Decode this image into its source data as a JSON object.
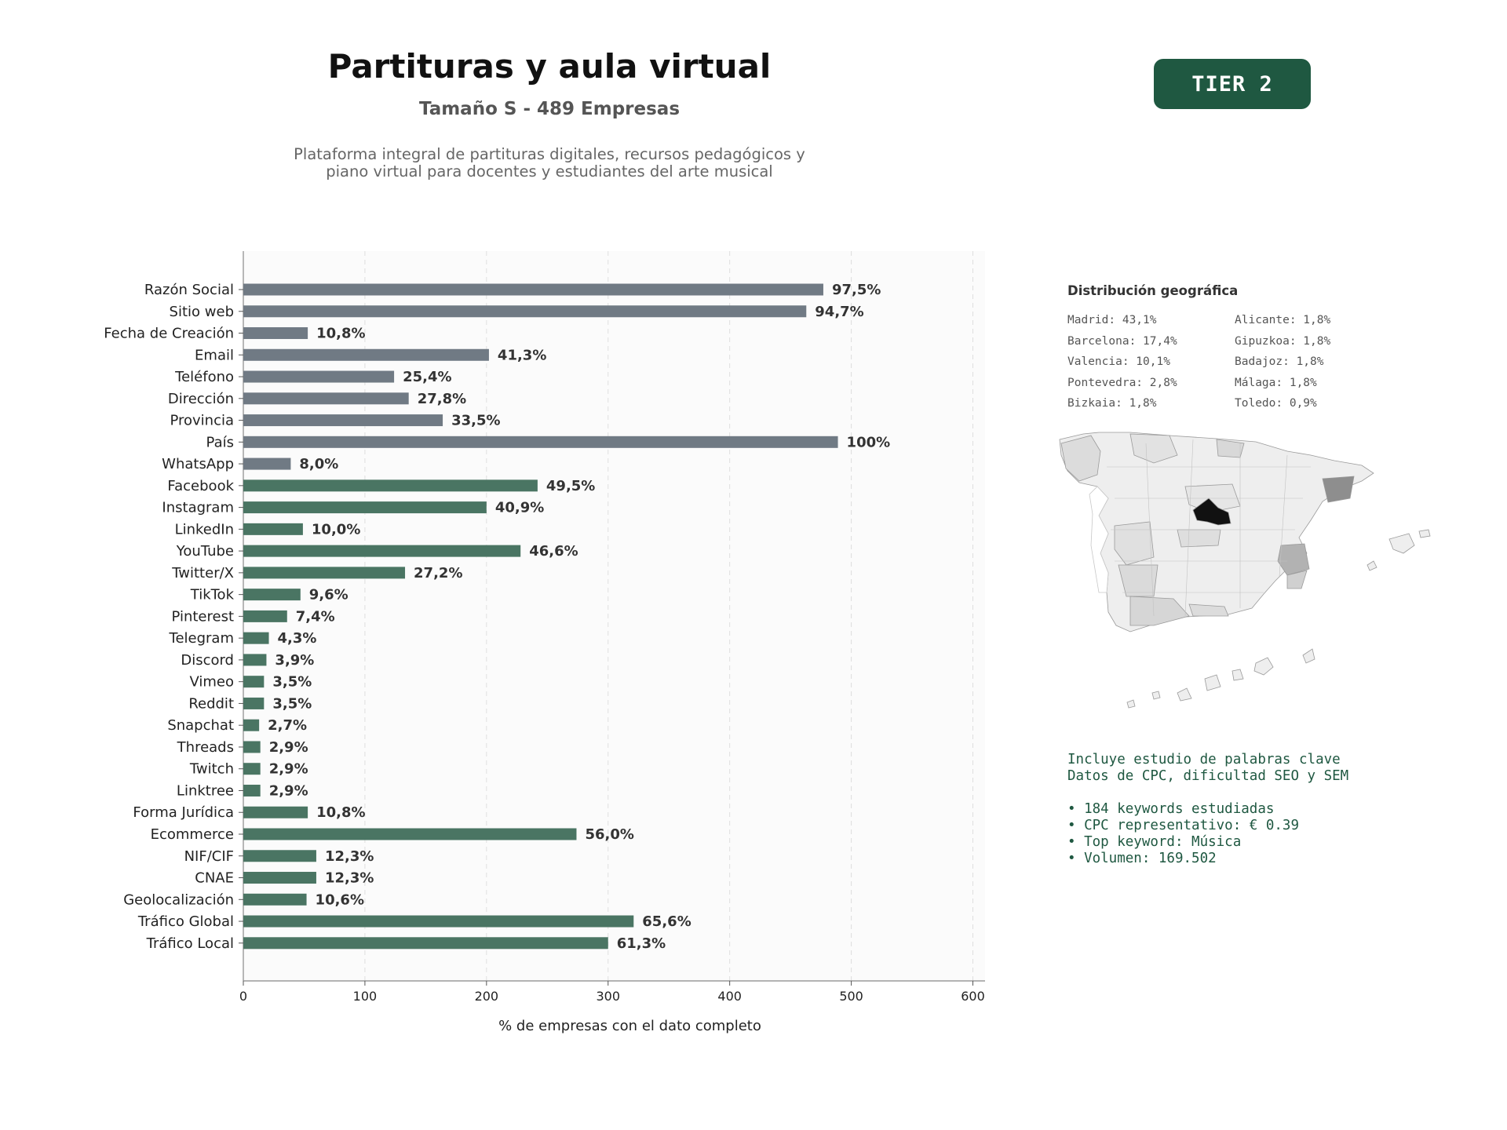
{
  "header": {
    "title": "Partituras y aula virtual",
    "subtitle": "Tamaño S - 489 Empresas",
    "description_line1": "Plataforma integral de partituras digitales, recursos pedagógicos y",
    "description_line2": "piano virtual para docentes y estudiantes del arte musical",
    "tier_badge": "TIER 2"
  },
  "colors": {
    "gray_bar": "#707a84",
    "green_bar": "#4a7563",
    "tier_badge": "#1f5841",
    "keywords_text": "#1f5841",
    "madrid_region": "#111111"
  },
  "chart_data": {
    "type": "bar",
    "orientation": "horizontal",
    "xlabel": "% de empresas con el dato completo",
    "xlim": [
      0,
      610
    ],
    "xticks": [
      0,
      100,
      200,
      300,
      400,
      500,
      600
    ],
    "grid": "vertical dashed",
    "categories": [
      "Razón Social",
      "Sitio web",
      "Fecha de Creación",
      "Email",
      "Teléfono",
      "Dirección",
      "Provincia",
      "País",
      "WhatsApp",
      "Facebook",
      "Instagram",
      "LinkedIn",
      "YouTube",
      "Twitter/X",
      "TikTok",
      "Pinterest",
      "Telegram",
      "Discord",
      "Vimeo",
      "Reddit",
      "Snapchat",
      "Threads",
      "Twitch",
      "Linktree",
      "Forma Jurídica",
      "Ecommerce",
      "NIF/CIF",
      "CNAE",
      "Geolocalización",
      "Tráfico Global",
      "Tráfico Local"
    ],
    "values": [
      477,
      463,
      53,
      202,
      124,
      136,
      164,
      489,
      39,
      242,
      200,
      49,
      228,
      133,
      47,
      36,
      21,
      19,
      17,
      17,
      13,
      14,
      14,
      14,
      53,
      274,
      60,
      60,
      52,
      321,
      300
    ],
    "labels": [
      "97,5%",
      "94,7%",
      "10,8%",
      "41,3%",
      "25,4%",
      "27,8%",
      "33,5%",
      "100%",
      "8,0%",
      "49,5%",
      "40,9%",
      "10,0%",
      "46,6%",
      "27,2%",
      "9,6%",
      "7,4%",
      "4,3%",
      "3,9%",
      "3,5%",
      "3,5%",
      "2,7%",
      "2,9%",
      "2,9%",
      "2,9%",
      "10,8%",
      "56,0%",
      "12,3%",
      "12,3%",
      "10,6%",
      "65,6%",
      "61,3%"
    ],
    "colors": [
      "gray",
      "gray",
      "gray",
      "gray",
      "gray",
      "gray",
      "gray",
      "gray",
      "gray",
      "green",
      "green",
      "green",
      "green",
      "green",
      "green",
      "green",
      "green",
      "green",
      "green",
      "green",
      "green",
      "green",
      "green",
      "green",
      "green",
      "green",
      "green",
      "green",
      "green",
      "green",
      "green"
    ]
  },
  "geo": {
    "title": "Distribución geográfica",
    "items": [
      "Madrid: 43,1%",
      "Alicante: 1,8%",
      "Barcelona: 17,4%",
      "Gipuzkoa: 1,8%",
      "Valencia: 10,1%",
      "Badajoz: 1,8%",
      "Pontevedra: 2,8%",
      "Málaga: 1,8%",
      "Bizkaia: 1,8%",
      "Toledo: 0,9%"
    ]
  },
  "keywords": {
    "line1": "Incluye estudio de palabras clave",
    "line2": "Datos de CPC, dificultad SEO y SEM",
    "bullets": [
      "• 184 keywords estudiadas",
      "• CPC representativo: € 0.39",
      "• Top keyword: Música",
      "• Volumen: 169.502"
    ]
  }
}
